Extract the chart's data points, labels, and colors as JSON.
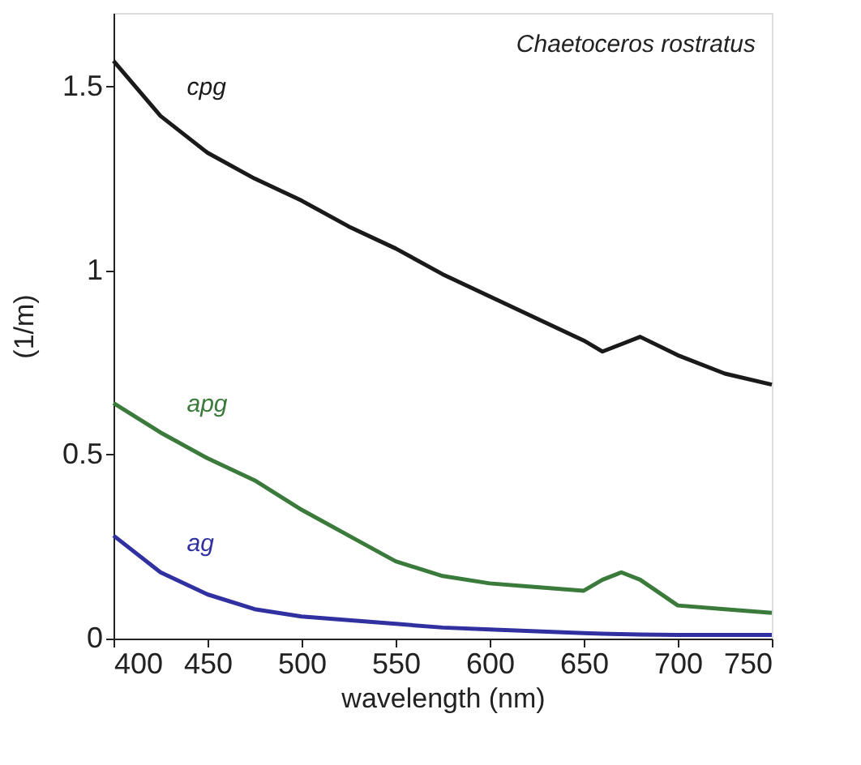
{
  "chart_data": {
    "type": "line",
    "xlabel": "wavelength (nm)",
    "ylabel": "(1/m)",
    "x": [
      400,
      425,
      450,
      475,
      500,
      525,
      550,
      575,
      600,
      625,
      650,
      660,
      670,
      680,
      700,
      725,
      750
    ],
    "series": [
      {
        "name": "cpg",
        "color": "#1a1a1a",
        "values": [
          1.57,
          1.42,
          1.32,
          1.25,
          1.19,
          1.12,
          1.06,
          0.99,
          0.93,
          0.87,
          0.81,
          0.78,
          0.8,
          0.82,
          0.77,
          0.72,
          0.69
        ]
      },
      {
        "name": "apg",
        "color": "#3a7a3a",
        "values": [
          0.64,
          0.56,
          0.49,
          0.43,
          0.35,
          0.28,
          0.21,
          0.17,
          0.15,
          0.14,
          0.13,
          0.16,
          0.18,
          0.16,
          0.09,
          0.08,
          0.07
        ]
      },
      {
        "name": "ag",
        "color": "#3030a0",
        "values": [
          0.28,
          0.18,
          0.12,
          0.08,
          0.06,
          0.05,
          0.04,
          0.03,
          0.025,
          0.02,
          0.015,
          0.013,
          0.012,
          0.011,
          0.01,
          0.01,
          0.01
        ]
      }
    ],
    "annotations": [
      "Chaetoceros rostratus"
    ],
    "xlim": [
      400,
      750
    ],
    "xticks": [
      400,
      450,
      500,
      550,
      600,
      650,
      700,
      750
    ],
    "ylim": [
      0,
      1.7
    ],
    "yticks": [
      0,
      0.5,
      1,
      1.5
    ],
    "grid": false,
    "legend": false,
    "marker": "none",
    "line_style": "solid"
  }
}
